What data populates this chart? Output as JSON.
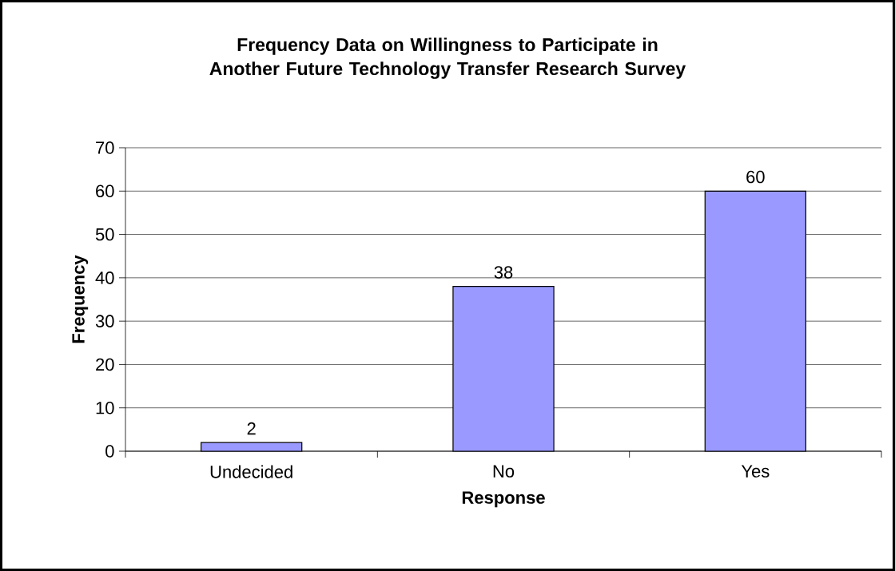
{
  "chart_data": {
    "type": "bar",
    "title": "Frequency Data on Willingness to Participate in Another Future Technology Transfer Research Survey",
    "xlabel": "Response",
    "ylabel": "Frequency",
    "categories": [
      "Undecided",
      "No",
      "Yes"
    ],
    "values": [
      2,
      38,
      60
    ],
    "color": "#9999ff",
    "ylim": [
      0,
      70
    ],
    "yticks": [
      0,
      10,
      20,
      30,
      40,
      50,
      60,
      70
    ],
    "grid": "y",
    "data_labels": true
  }
}
